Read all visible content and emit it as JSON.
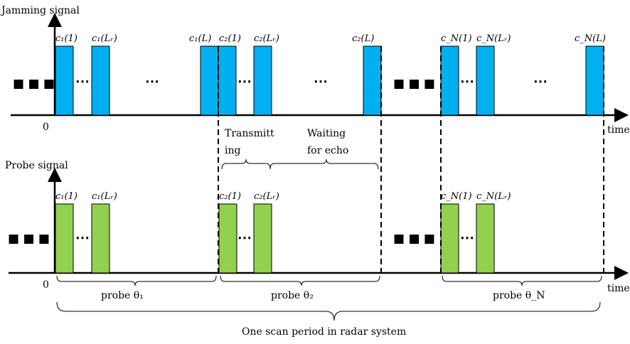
{
  "colors": {
    "jamming_pulse": "#00B0F0",
    "probe_pulse": "#92D050",
    "stroke": "#000000"
  },
  "jamming": {
    "title": "Jamming signal",
    "origin": "0",
    "time_label": "time",
    "pulse_labels": [
      "c₁(1)",
      "c₁(Lᵣ)",
      "c₁(L)",
      "c₂(1)",
      "c₂(Lᵣ)",
      "c₂(L)",
      "c_N(1)",
      "c_N(Lᵣ)",
      "c_N(L)"
    ],
    "ellipsis_small": "⋯",
    "ellipsis_big": "■ ■ ■"
  },
  "probe": {
    "title": "Probe signal",
    "origin": "0",
    "time_label": "time",
    "pulse_labels": [
      "c₁(1)",
      "c₁(Lᵣ)",
      "c₂(1)",
      "c₂(Lᵣ)",
      "c_N(1)",
      "c_N(Lᵣ)"
    ],
    "ellipsis_small": "⋯",
    "ellipsis_big": "■ ■ ■"
  },
  "annotations": {
    "transmitting_line1": "Transmitt",
    "transmitting_line2": "ing",
    "waiting_line1": "Waiting",
    "waiting_line2": "for echo",
    "probe1": "probe θ₁",
    "probe2": "probe θ₂",
    "probeN": "probe θ_N",
    "scan_period": "One scan period in radar system"
  }
}
